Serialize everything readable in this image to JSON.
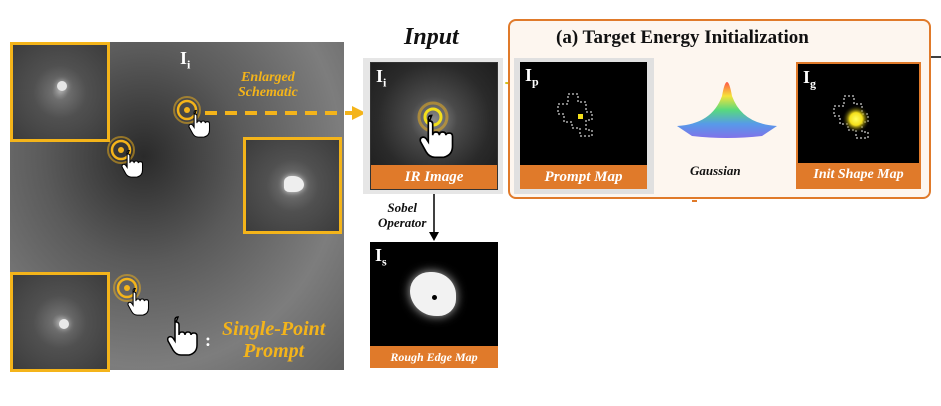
{
  "left_panel": {
    "image_label": "I",
    "image_label_sub": "i",
    "enlarged_label_line1": "Enlarged",
    "enlarged_label_line2": "Schematic",
    "single_point_colon": ":",
    "single_point_line1": "Single-Point",
    "single_point_line2": "Prompt"
  },
  "input_section": {
    "title": "Input",
    "ir_label": "I",
    "ir_label_sub": "i",
    "ir_caption": "IR Image",
    "sobel_line1": "Sobel",
    "sobel_line2": "Operator",
    "edge_label": "I",
    "edge_label_sub": "s",
    "edge_caption": "Rough Edge Map"
  },
  "energy_section": {
    "title": "(a) Target Energy Initialization",
    "prompt_label": "I",
    "prompt_label_sub": "p",
    "prompt_caption": "Prompt Map",
    "gaussian_label": "Gaussian",
    "init_label": "I",
    "init_label_sub": "g",
    "init_caption": "Init Shape Map"
  },
  "colors": {
    "accent_orange": "#e07a2a",
    "highlight_yellow": "#f4b41a"
  }
}
